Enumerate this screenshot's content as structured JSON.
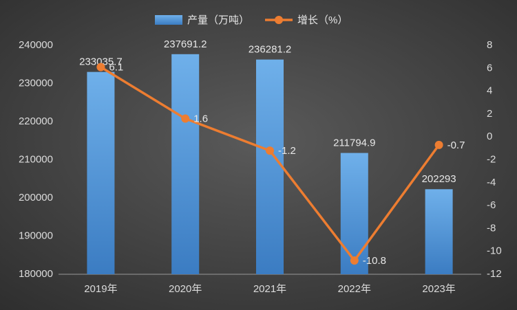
{
  "chart_data": {
    "type": "bar",
    "categories": [
      "2019年",
      "2020年",
      "2021年",
      "2022年",
      "2023年"
    ],
    "series": [
      {
        "name": "产量（万吨）",
        "type": "bar",
        "color": "#5b9bd5",
        "values": [
          233035.7,
          237691.2,
          236281.2,
          211794.9,
          202293
        ]
      },
      {
        "name": "增长（%）",
        "type": "line",
        "axis": "y2",
        "color": "#ed7d31",
        "values": [
          6.1,
          1.6,
          -1.2,
          -10.8,
          -0.7
        ]
      }
    ],
    "ylim": [
      180000,
      240000
    ],
    "yticks": [
      180000,
      190000,
      200000,
      210000,
      220000,
      230000,
      240000
    ],
    "y2lim": [
      -12,
      8
    ],
    "y2ticks": [
      -12,
      -10,
      -8,
      -6,
      -4,
      -2,
      0,
      2,
      4,
      6,
      8
    ],
    "legend": "top"
  }
}
